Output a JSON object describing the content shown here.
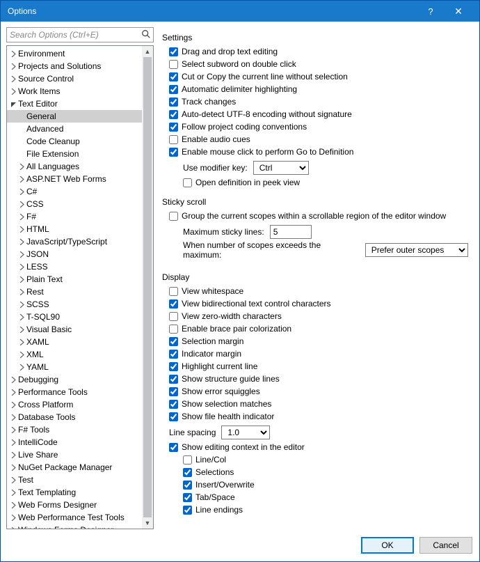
{
  "window": {
    "title": "Options"
  },
  "search": {
    "placeholder": "Search Options (Ctrl+E)"
  },
  "tree": [
    {
      "label": "Environment",
      "level": 1,
      "expand": "closed"
    },
    {
      "label": "Projects and Solutions",
      "level": 1,
      "expand": "closed"
    },
    {
      "label": "Source Control",
      "level": 1,
      "expand": "closed"
    },
    {
      "label": "Work Items",
      "level": 1,
      "expand": "closed"
    },
    {
      "label": "Text Editor",
      "level": 1,
      "expand": "open"
    },
    {
      "label": "General",
      "level": 2,
      "expand": "none",
      "selected": true
    },
    {
      "label": "Advanced",
      "level": 2,
      "expand": "none"
    },
    {
      "label": "Code Cleanup",
      "level": 2,
      "expand": "none"
    },
    {
      "label": "File Extension",
      "level": 2,
      "expand": "none"
    },
    {
      "label": "All Languages",
      "level": 2,
      "expand": "closed"
    },
    {
      "label": "ASP.NET Web Forms",
      "level": 2,
      "expand": "closed"
    },
    {
      "label": "C#",
      "level": 2,
      "expand": "closed"
    },
    {
      "label": "CSS",
      "level": 2,
      "expand": "closed"
    },
    {
      "label": "F#",
      "level": 2,
      "expand": "closed"
    },
    {
      "label": "HTML",
      "level": 2,
      "expand": "closed"
    },
    {
      "label": "JavaScript/TypeScript",
      "level": 2,
      "expand": "closed"
    },
    {
      "label": "JSON",
      "level": 2,
      "expand": "closed"
    },
    {
      "label": "LESS",
      "level": 2,
      "expand": "closed"
    },
    {
      "label": "Plain Text",
      "level": 2,
      "expand": "closed"
    },
    {
      "label": "Rest",
      "level": 2,
      "expand": "closed"
    },
    {
      "label": "SCSS",
      "level": 2,
      "expand": "closed"
    },
    {
      "label": "T-SQL90",
      "level": 2,
      "expand": "closed"
    },
    {
      "label": "Visual Basic",
      "level": 2,
      "expand": "closed"
    },
    {
      "label": "XAML",
      "level": 2,
      "expand": "closed"
    },
    {
      "label": "XML",
      "level": 2,
      "expand": "closed"
    },
    {
      "label": "YAML",
      "level": 2,
      "expand": "closed"
    },
    {
      "label": "Debugging",
      "level": 1,
      "expand": "closed"
    },
    {
      "label": "Performance Tools",
      "level": 1,
      "expand": "closed"
    },
    {
      "label": "Cross Platform",
      "level": 1,
      "expand": "closed"
    },
    {
      "label": "Database Tools",
      "level": 1,
      "expand": "closed"
    },
    {
      "label": "F# Tools",
      "level": 1,
      "expand": "closed"
    },
    {
      "label": "IntelliCode",
      "level": 1,
      "expand": "closed"
    },
    {
      "label": "Live Share",
      "level": 1,
      "expand": "closed"
    },
    {
      "label": "NuGet Package Manager",
      "level": 1,
      "expand": "closed"
    },
    {
      "label": "Test",
      "level": 1,
      "expand": "closed"
    },
    {
      "label": "Text Templating",
      "level": 1,
      "expand": "closed"
    },
    {
      "label": "Web Forms Designer",
      "level": 1,
      "expand": "closed"
    },
    {
      "label": "Web Performance Test Tools",
      "level": 1,
      "expand": "closed"
    },
    {
      "label": "Windows Forms Designer",
      "level": 1,
      "expand": "closed"
    }
  ],
  "sections": {
    "settings": {
      "title": "Settings",
      "items": [
        {
          "label": "Drag and drop text editing",
          "checked": true
        },
        {
          "label": "Select subword on double click",
          "checked": false
        },
        {
          "label": "Cut or Copy the current line without selection",
          "checked": true
        },
        {
          "label": "Automatic delimiter highlighting",
          "checked": true
        },
        {
          "label": "Track changes",
          "checked": true
        },
        {
          "label": "Auto-detect UTF-8 encoding without signature",
          "checked": true
        },
        {
          "label": "Follow project coding conventions",
          "checked": true
        },
        {
          "label": "Enable audio cues",
          "checked": false
        },
        {
          "label": "Enable mouse click to perform Go to Definition",
          "checked": true
        }
      ],
      "modifier_label": "Use modifier key:",
      "modifier_value": "Ctrl",
      "peek": {
        "label": "Open definition in peek view",
        "checked": false
      }
    },
    "sticky": {
      "title": "Sticky scroll",
      "group": {
        "label": "Group the current scopes within a scrollable region of the editor window",
        "checked": false
      },
      "max_label": "Maximum sticky lines:",
      "max_value": "5",
      "exceed_label": "When number of scopes exceeds the maximum:",
      "exceed_value": "Prefer outer scopes"
    },
    "display": {
      "title": "Display",
      "items": [
        {
          "label": "View whitespace",
          "checked": false
        },
        {
          "label": "View bidirectional text control characters",
          "checked": true
        },
        {
          "label": "View zero-width characters",
          "checked": false
        },
        {
          "label": "Enable brace pair colorization",
          "checked": false
        },
        {
          "label": "Selection margin",
          "checked": true
        },
        {
          "label": "Indicator margin",
          "checked": true
        },
        {
          "label": "Highlight current line",
          "checked": true
        },
        {
          "label": "Show structure guide lines",
          "checked": true
        },
        {
          "label": "Show error squiggles",
          "checked": true
        },
        {
          "label": "Show selection matches",
          "checked": true
        },
        {
          "label": "Show file health indicator",
          "checked": true
        }
      ],
      "linespacing_label": "Line spacing",
      "linespacing_value": "1.0",
      "context": {
        "label": "Show editing context in the editor",
        "checked": true
      },
      "context_sub": [
        {
          "label": "Line/Col",
          "checked": false
        },
        {
          "label": "Selections",
          "checked": true
        },
        {
          "label": "Insert/Overwrite",
          "checked": true
        },
        {
          "label": "Tab/Space",
          "checked": true
        },
        {
          "label": "Line endings",
          "checked": true
        }
      ]
    }
  },
  "footer": {
    "ok": "OK",
    "cancel": "Cancel"
  },
  "colors": {
    "titlebar": "#1979ca",
    "selection": "#d0d0d0",
    "border": "#828790",
    "primary_border": "#0078d7"
  }
}
